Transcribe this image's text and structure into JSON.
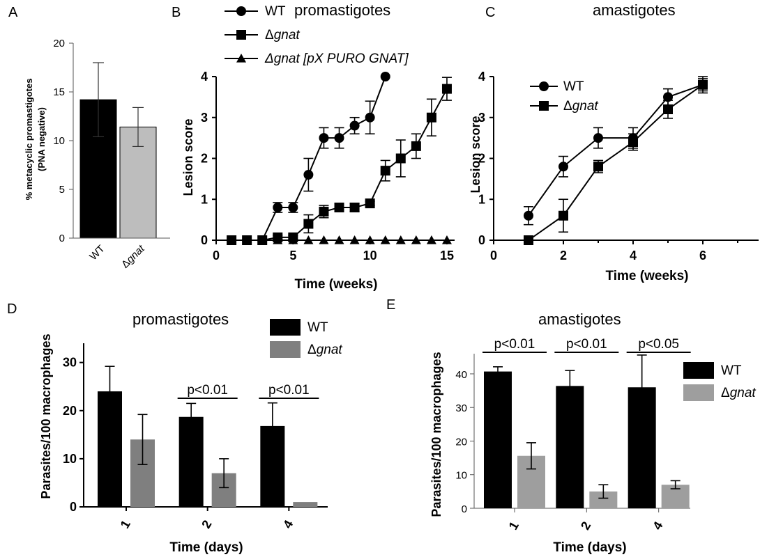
{
  "chart_data": [
    {
      "panel": "A",
      "type": "bar",
      "ylabel_line1": "% metacyclic promastigotes",
      "ylabel_line2": "(PNA negative)",
      "yticks": [
        "0",
        "5",
        "10",
        "15",
        "20"
      ],
      "ylim": [
        0,
        20
      ],
      "categories": [
        "WT",
        "Δgnat"
      ],
      "values": [
        14.2,
        11.4
      ],
      "errors": [
        3.8,
        2.0
      ],
      "colors": [
        "#000000",
        "#bdbdbd"
      ]
    },
    {
      "panel": "B",
      "type": "line",
      "title": "promastigotes",
      "xlabel": "Time (weeks)",
      "ylabel": "Lesion score",
      "xticks": [
        "0",
        "5",
        "10",
        "15"
      ],
      "yticks": [
        "0",
        "1",
        "2",
        "3",
        "4"
      ],
      "xlim": [
        0,
        15.5
      ],
      "ylim": [
        0,
        4
      ],
      "series": [
        {
          "name": "WT",
          "marker": "circle",
          "x": [
            1,
            2,
            3,
            4,
            5,
            6,
            7,
            8,
            9,
            10,
            11
          ],
          "y": [
            0,
            0,
            0,
            0.8,
            0.8,
            1.6,
            2.5,
            2.5,
            2.8,
            3.0,
            4.0
          ],
          "err": [
            0,
            0,
            0,
            0.12,
            0.12,
            0.4,
            0.25,
            0.25,
            0.2,
            0.4,
            0
          ]
        },
        {
          "name": "Δgnat",
          "marker": "square",
          "x": [
            1,
            2,
            3,
            4,
            5,
            6,
            7,
            8,
            9,
            10,
            11,
            12,
            13,
            14,
            15
          ],
          "y": [
            0,
            0,
            0,
            0.07,
            0.07,
            0.4,
            0.7,
            0.8,
            0.8,
            0.9,
            1.7,
            2.0,
            2.3,
            3.0,
            3.7
          ],
          "err": [
            0,
            0,
            0,
            0.05,
            0.05,
            0.22,
            0.15,
            0.1,
            0.1,
            0.05,
            0.25,
            0.45,
            0.3,
            0.45,
            0.28
          ]
        },
        {
          "name": "Δgnat [pX PURO GNAT]",
          "marker": "triangle",
          "x": [
            1,
            2,
            3,
            4,
            5,
            6,
            7,
            8,
            9,
            10,
            11,
            12,
            13,
            14,
            15
          ],
          "y": [
            0,
            0,
            0,
            0,
            0,
            0,
            0,
            0,
            0,
            0,
            0,
            0,
            0,
            0,
            0
          ],
          "err": [
            0,
            0,
            0,
            0,
            0,
            0,
            0,
            0,
            0,
            0,
            0,
            0,
            0,
            0,
            0
          ]
        }
      ]
    },
    {
      "panel": "C",
      "type": "line",
      "title": "amastigotes",
      "xlabel": "Time (weeks)",
      "ylabel": "Lesion score",
      "xticks": [
        "0",
        "2",
        "4",
        "6"
      ],
      "yticks": [
        "0",
        "1",
        "2",
        "3",
        "4"
      ],
      "xlim": [
        0,
        7.6
      ],
      "ylim": [
        0,
        4
      ],
      "series": [
        {
          "name": "WT",
          "marker": "circle",
          "x": [
            1,
            2,
            3,
            4,
            5,
            6
          ],
          "y": [
            0.6,
            1.8,
            2.5,
            2.5,
            3.5,
            3.8
          ],
          "err": [
            0.22,
            0.25,
            0.25,
            0.25,
            0.2,
            0.15
          ]
        },
        {
          "name": "Δgnat",
          "marker": "square",
          "x": [
            1,
            2,
            3,
            4,
            5,
            6
          ],
          "y": [
            0,
            0.6,
            1.8,
            2.4,
            3.2,
            3.8
          ],
          "err": [
            0,
            0.4,
            0.15,
            0.2,
            0.22,
            0.2
          ]
        }
      ]
    },
    {
      "panel": "D",
      "type": "bar",
      "title": "promastigotes",
      "xlabel": "Time (days)",
      "ylabel": "Parasites/100 macrophages",
      "categories": [
        "1",
        "2",
        "4"
      ],
      "yticks": [
        "0",
        "10",
        "20",
        "30"
      ],
      "ylim": [
        0,
        34
      ],
      "series": [
        {
          "name": "WT",
          "values": [
            24,
            18.7,
            16.8
          ],
          "err": [
            5.2,
            2.8,
            4.8
          ],
          "color": "#000000"
        },
        {
          "name": "Δgnat",
          "values": [
            14,
            7,
            1
          ],
          "err": [
            5.2,
            3,
            0
          ],
          "color": "#7f7f7f"
        }
      ],
      "annotations": [
        "p<0.01",
        "p<0.01"
      ]
    },
    {
      "panel": "E",
      "type": "bar",
      "title": "amastigotes",
      "xlabel": "Time (days)",
      "ylabel": "Parasites/100 macrophages",
      "categories": [
        "1",
        "2",
        "4"
      ],
      "yticks": [
        "0",
        "10",
        "20",
        "30",
        "40"
      ],
      "ylim": [
        0,
        46
      ],
      "series": [
        {
          "name": "WT",
          "values": [
            40.7,
            36.4,
            36
          ],
          "err": [
            1.4,
            4.6,
            9.6
          ],
          "color": "#000000"
        },
        {
          "name": "Δgnat",
          "values": [
            15.6,
            5,
            7
          ],
          "err": [
            3.9,
            2,
            1.2
          ],
          "color": "#9e9e9e"
        }
      ],
      "annotations": [
        "p<0.01",
        "p<0.01",
        "p<0.05"
      ]
    }
  ],
  "panel_labels": [
    "A",
    "B",
    "C",
    "D",
    "E"
  ]
}
